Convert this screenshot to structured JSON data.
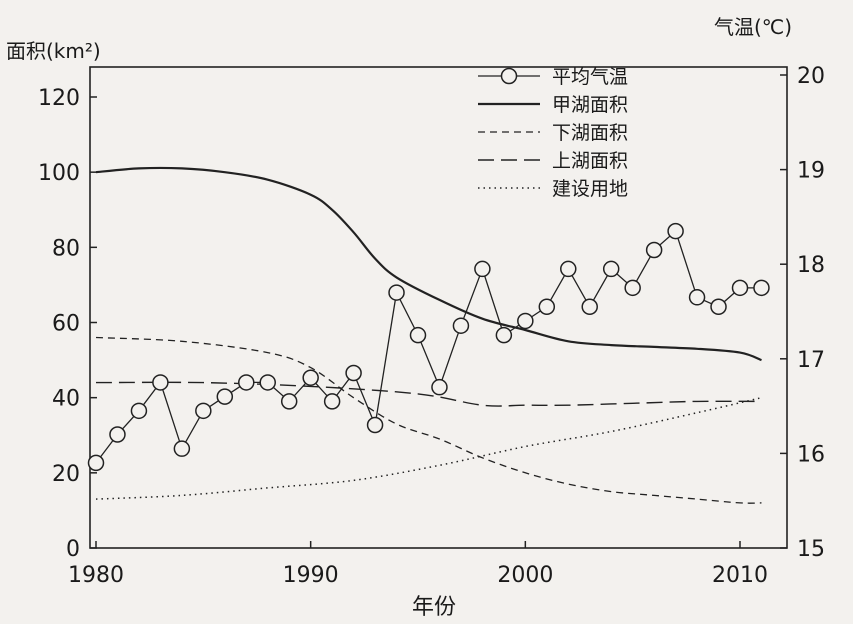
{
  "chart_data": {
    "type": "line",
    "xlabel": "年份",
    "ylabel_left": "面积(km²)",
    "ylabel_right": "气温(℃)",
    "xlim": [
      1979,
      2012
    ],
    "ylim_left": [
      0,
      120
    ],
    "ylim_right": [
      15,
      20
    ],
    "x_ticks": [
      1980,
      1990,
      2000,
      2010
    ],
    "y_left_ticks": [
      0,
      20,
      40,
      60,
      80,
      100,
      120
    ],
    "y_right_ticks": [
      15,
      16,
      17,
      18,
      19,
      20
    ],
    "legend_position": "top-right",
    "series": [
      {
        "name": "平均气温",
        "axis": "right",
        "style": "line-circle",
        "x": [
          1980,
          1981,
          1982,
          1983,
          1984,
          1985,
          1986,
          1987,
          1988,
          1989,
          1990,
          1991,
          1992,
          1993,
          1994,
          1995,
          1996,
          1997,
          1998,
          1999,
          2000,
          2001,
          2002,
          2003,
          2004,
          2005,
          2006,
          2007,
          2008,
          2009,
          2010,
          2011
        ],
        "values": [
          15.9,
          16.2,
          16.45,
          16.75,
          16.05,
          16.45,
          16.6,
          16.75,
          16.75,
          16.55,
          16.8,
          16.55,
          16.85,
          16.3,
          17.7,
          17.25,
          16.7,
          17.35,
          17.95,
          17.25,
          17.4,
          17.55,
          17.95,
          17.55,
          17.95,
          17.75,
          18.15,
          18.35,
          17.65,
          17.55,
          17.75,
          17.75
        ]
      },
      {
        "name": "甲湖面积",
        "axis": "left",
        "style": "solid",
        "x": [
          1980,
          1982,
          1984,
          1986,
          1988,
          1990,
          1991,
          1992,
          1993,
          1994,
          1996,
          1998,
          2000,
          2002,
          2004,
          2006,
          2008,
          2010,
          2011
        ],
        "values": [
          100,
          101,
          101,
          100,
          98,
          94,
          90,
          84,
          77,
          72,
          66,
          61,
          58,
          55,
          54,
          53.5,
          53,
          52,
          50
        ]
      },
      {
        "name": "下湖面积",
        "axis": "left",
        "style": "short-dash",
        "x": [
          1980,
          1984,
          1988,
          1990,
          1992,
          1994,
          1996,
          1998,
          2000,
          2002,
          2004,
          2006,
          2008,
          2010,
          2011
        ],
        "values": [
          56,
          55,
          52,
          48,
          40,
          33,
          29,
          24,
          20,
          17,
          15,
          14,
          13,
          12,
          12
        ]
      },
      {
        "name": "上湖面积",
        "axis": "left",
        "style": "long-dash",
        "x": [
          1980,
          1985,
          1990,
          1995,
          1998,
          2000,
          2002,
          2005,
          2008,
          2011
        ],
        "values": [
          44,
          44,
          43,
          41,
          38,
          38,
          38,
          38.5,
          39,
          39
        ]
      },
      {
        "name": "建设用地",
        "axis": "left",
        "style": "dotted",
        "x": [
          1980,
          1984,
          1988,
          1992,
          1996,
          2000,
          2004,
          2008,
          2011
        ],
        "values": [
          13,
          14,
          16,
          18,
          22,
          27,
          31,
          36,
          40
        ]
      }
    ]
  }
}
